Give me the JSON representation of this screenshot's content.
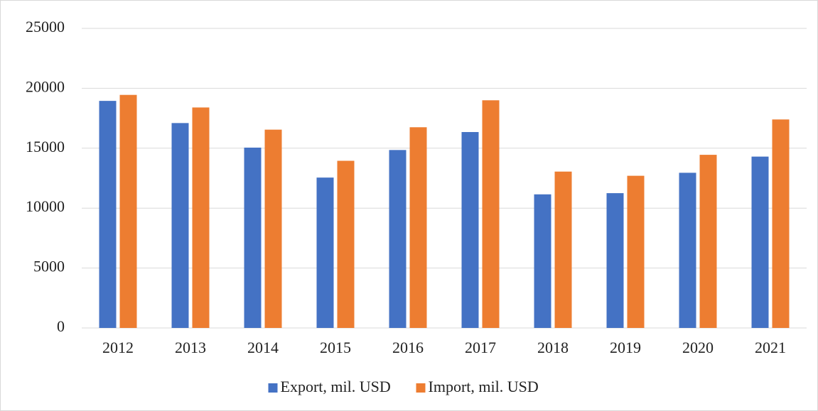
{
  "chart_data": {
    "type": "bar",
    "categories": [
      "2012",
      "2013",
      "2014",
      "2015",
      "2016",
      "2017",
      "2018",
      "2019",
      "2020",
      "2021"
    ],
    "series": [
      {
        "name": "Export, mil. USD",
        "color": "#4472c4",
        "values": [
          18950,
          17100,
          15050,
          12550,
          14850,
          16350,
          11150,
          11250,
          12950,
          14300
        ]
      },
      {
        "name": "Import, mil. USD",
        "color": "#ed7d31",
        "values": [
          19450,
          18400,
          16550,
          13950,
          16750,
          19000,
          13050,
          12700,
          14450,
          17400
        ]
      }
    ],
    "ylim": [
      0,
      25000
    ],
    "yticks": [
      0,
      5000,
      10000,
      15000,
      20000,
      25000
    ],
    "grid": true,
    "legend": "bottom"
  }
}
